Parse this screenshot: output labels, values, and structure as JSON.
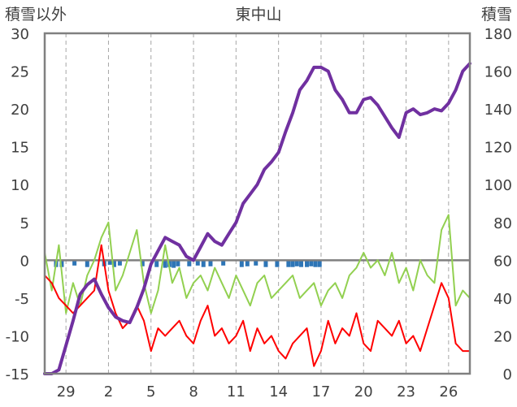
{
  "chart_data": {
    "type": "line",
    "title": "東中山",
    "left_axis_label": "積雪以外",
    "right_axis_label": "積雪",
    "left_ylim": [
      -15,
      30
    ],
    "left_yticks": [
      "30",
      "25",
      "20",
      "15",
      "10",
      "5",
      "0",
      "-5",
      "-10",
      "-15"
    ],
    "right_ylim": [
      0,
      180
    ],
    "right_yticks": [
      "180",
      "160",
      "140",
      "120",
      "100",
      "80",
      "60",
      "40",
      "20",
      "0"
    ],
    "xlim": [
      0,
      30
    ],
    "xtick_positions": [
      1.5,
      4.5,
      7.5,
      10.5,
      13.5,
      16.5,
      19.5,
      22.5,
      25.5,
      28.5
    ],
    "xtick_labels": [
      "29",
      "2",
      "5",
      "8",
      "11",
      "14",
      "17",
      "20",
      "23",
      "26"
    ],
    "grid": "vertical-dashed",
    "colors": {
      "snow_depth": "#7030a0",
      "max_temp": "#92d050",
      "min_temp": "#ff0000",
      "precip": "#2e75b6",
      "zero_line": "#7f7f7f",
      "frame": "#808080"
    },
    "series": [
      {
        "key": "snow_depth",
        "axis": "right",
        "x": [
          0,
          0.5,
          1,
          1.5,
          2,
          2.5,
          3,
          3.5,
          4,
          4.5,
          5,
          5.5,
          6,
          6.5,
          7,
          7.5,
          8,
          8.5,
          9,
          9.5,
          10,
          10.5,
          11,
          11.5,
          12,
          12.5,
          13,
          13.5,
          14,
          14.5,
          15,
          15.5,
          16,
          16.5,
          17,
          17.5,
          18,
          18.5,
          19,
          19.5,
          20,
          20.5,
          21,
          21.5,
          22,
          22.5,
          23,
          23.5,
          24,
          24.5,
          25,
          25.5,
          26,
          26.5,
          27,
          27.5,
          28,
          28.5,
          29,
          29.5,
          30
        ],
        "values": [
          0,
          0,
          2,
          15,
          28,
          42,
          47,
          50,
          42,
          35,
          30,
          28,
          27,
          35,
          45,
          58,
          65,
          72,
          70,
          68,
          62,
          60,
          67,
          74,
          70,
          68,
          74,
          80,
          90,
          95,
          100,
          108,
          112,
          117,
          128,
          138,
          150,
          155,
          162,
          162,
          160,
          150,
          145,
          138,
          138,
          145,
          146,
          142,
          136,
          130,
          125,
          138,
          140,
          137,
          138,
          140,
          139,
          143,
          150,
          160,
          164
        ]
      },
      {
        "key": "max_temp",
        "axis": "left",
        "x": [
          0,
          0.5,
          1,
          1.5,
          2,
          2.5,
          3,
          3.5,
          4,
          4.5,
          5,
          5.5,
          6,
          6.5,
          7,
          7.5,
          8,
          8.5,
          9,
          9.5,
          10,
          10.5,
          11,
          11.5,
          12,
          12.5,
          13,
          13.5,
          14,
          14.5,
          15,
          15.5,
          16,
          16.5,
          17,
          17.5,
          18,
          18.5,
          19,
          19.5,
          20,
          20.5,
          21,
          21.5,
          22,
          22.5,
          23,
          23.5,
          24,
          24.5,
          25,
          25.5,
          26,
          26.5,
          27,
          27.5,
          28,
          28.5,
          29,
          29.5,
          30
        ],
        "values": [
          1,
          -4,
          2,
          -7,
          -3,
          -6,
          -2,
          0,
          3,
          5,
          -4,
          -2,
          1,
          4,
          -3,
          -7,
          -4,
          2,
          -3,
          -1,
          -5,
          -3,
          -2,
          -4,
          -1,
          -3,
          -5,
          -2,
          -4,
          -6,
          -3,
          -2,
          -5,
          -4,
          -3,
          -2,
          -5,
          -4,
          -3,
          -6,
          -4,
          -3,
          -5,
          -2,
          -1,
          1,
          -1,
          0,
          -2,
          1,
          -3,
          -1,
          -4,
          0,
          -2,
          -3,
          4,
          6,
          -6,
          -4,
          -5
        ]
      },
      {
        "key": "min_temp",
        "axis": "left",
        "x": [
          0,
          0.5,
          1,
          1.5,
          2,
          2.5,
          3,
          3.5,
          4,
          4.5,
          5,
          5.5,
          6,
          6.5,
          7,
          7.5,
          8,
          8.5,
          9,
          9.5,
          10,
          10.5,
          11,
          11.5,
          12,
          12.5,
          13,
          13.5,
          14,
          14.5,
          15,
          15.5,
          16,
          16.5,
          17,
          17.5,
          18,
          18.5,
          19,
          19.5,
          20,
          20.5,
          21,
          21.5,
          22,
          22.5,
          23,
          23.5,
          24,
          24.5,
          25,
          25.5,
          26,
          26.5,
          27,
          27.5,
          28,
          28.5,
          29,
          29.5,
          30
        ],
        "values": [
          -2,
          -3,
          -5,
          -6,
          -7,
          -6,
          -5,
          -4,
          2,
          -4,
          -7,
          -9,
          -8,
          -6,
          -8,
          -12,
          -9,
          -10,
          -9,
          -8,
          -10,
          -11,
          -8,
          -6,
          -10,
          -9,
          -11,
          -10,
          -8,
          -12,
          -9,
          -11,
          -10,
          -12,
          -13,
          -11,
          -10,
          -9,
          -14,
          -12,
          -8,
          -11,
          -9,
          -10,
          -7,
          -11,
          -12,
          -8,
          -9,
          -10,
          -8,
          -11,
          -10,
          -12,
          -9,
          -6,
          -3,
          -5,
          -11,
          -12,
          -12
        ]
      },
      {
        "key": "precip",
        "type": "bar-down",
        "axis": "left",
        "x": [
          0.8,
          1.2,
          2.1,
          3.0,
          4.2,
          4.6,
          4.9,
          5.3,
          6.9,
          7.9,
          8.5,
          8.8,
          9.1,
          9.4,
          10.2,
          10.8,
          11.2,
          11.7,
          12.6,
          13.9,
          14.3,
          14.9,
          15.6,
          16.4,
          17.2,
          17.5,
          17.8,
          18.1,
          18.5,
          18.8,
          19.1,
          19.4
        ],
        "values": [
          0.9,
          0.9,
          0.7,
          0.9,
          0.8,
          0.6,
          0.9,
          0.7,
          0.8,
          0.9,
          1.0,
          0.9,
          1.0,
          0.8,
          0.8,
          0.7,
          0.9,
          0.8,
          0.7,
          0.9,
          0.8,
          0.7,
          0.9,
          0.9,
          0.9,
          0.9,
          0.8,
          0.9,
          0.9,
          0.8,
          0.9,
          0.9
        ]
      }
    ]
  }
}
